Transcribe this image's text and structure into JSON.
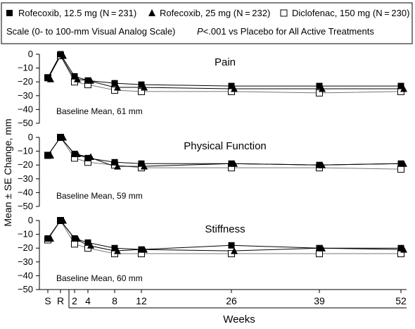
{
  "legend": {
    "items": [
      {
        "marker": "square-filled",
        "label": "Rofecoxib, 12.5 mg (N = 231)"
      },
      {
        "marker": "triangle-filled",
        "label": "Rofecoxib, 25 mg (N = 232)"
      },
      {
        "marker": "square-open",
        "label": "Diclofenac, 150 mg (N = 230)"
      }
    ],
    "scale_note": "Scale (0- to 100-mm Visual Analog Scale)",
    "p_prefix": "P",
    "p_note": "<.001 vs Placebo for All Active Treatments"
  },
  "chart_data": {
    "type": "line",
    "ylabel": "Mean ± SE Change, mm",
    "xlabel": "Weeks",
    "x_categories": [
      "S",
      "R",
      "2",
      "4",
      "8",
      "12",
      "26",
      "39",
      "52"
    ],
    "y_ticks": [
      0,
      -10,
      -20,
      -30,
      -40,
      -50
    ],
    "ylim": [
      -50,
      0
    ],
    "series_names": [
      "Rofecoxib, 12.5 mg",
      "Rofecoxib, 25 mg",
      "Diclofenac, 150 mg"
    ],
    "panels": [
      {
        "title": "Pain",
        "baseline_note": "Baseline Mean, 61 mm",
        "series": [
          {
            "name": "Rofecoxib, 12.5 mg",
            "values": [
              -17,
              0,
              -16,
              -19,
              -21,
              -22,
              -23,
              -23,
              -23
            ]
          },
          {
            "name": "Rofecoxib, 25 mg",
            "values": [
              -18,
              -1,
              -18,
              -19,
              -24,
              -24,
              -25,
              -25,
              -25
            ]
          },
          {
            "name": "Diclofenac, 150 mg",
            "values": [
              -17,
              -1,
              -20,
              -22,
              -26,
              -27,
              -27,
              -28,
              -27
            ]
          }
        ]
      },
      {
        "title": "Physical Function",
        "baseline_note": "Baseline Mean, 59 mm",
        "series": [
          {
            "name": "Rofecoxib, 12.5 mg",
            "values": [
              -13,
              0,
              -12,
              -15,
              -18,
              -19,
              -19,
              -20,
              -19
            ]
          },
          {
            "name": "Rofecoxib, 25 mg",
            "values": [
              -13,
              0,
              -12,
              -14,
              -21,
              -21,
              -19,
              -20,
              -19
            ]
          },
          {
            "name": "Diclofenac, 150 mg",
            "values": [
              -13,
              0,
              -15,
              -18,
              -20,
              -22,
              -22,
              -22,
              -23
            ]
          }
        ]
      },
      {
        "title": "Stiffness",
        "baseline_note": "Baseline Mean, 60 mm",
        "series": [
          {
            "name": "Rofecoxib, 12.5 mg",
            "values": [
              -13,
              0,
              -13,
              -16,
              -20,
              -21,
              -18,
              -20,
              -20
            ]
          },
          {
            "name": "Rofecoxib, 25 mg",
            "values": [
              -13,
              0,
              -13,
              -18,
              -22,
              -21,
              -22,
              -20,
              -21
            ]
          },
          {
            "name": "Diclofenac, 150 mg",
            "values": [
              -14,
              0,
              -17,
              -20,
              -24,
              -24,
              -24,
              -24,
              -24
            ]
          }
        ]
      }
    ]
  }
}
